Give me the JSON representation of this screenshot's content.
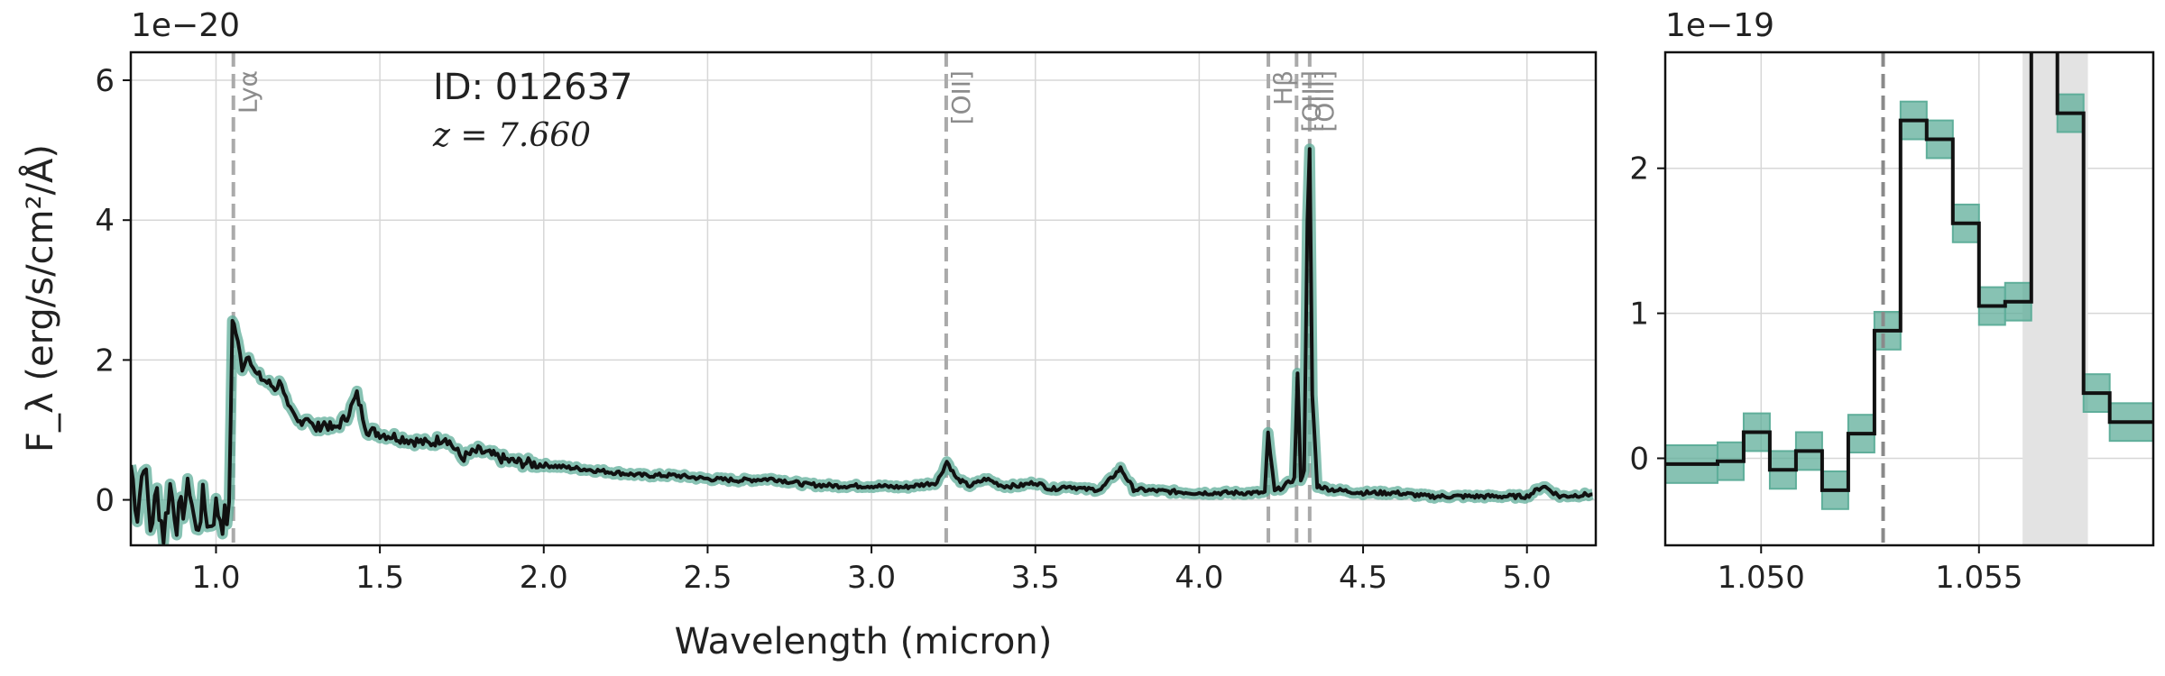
{
  "chart_data": [
    {
      "type": "line",
      "panel": "full-spectrum",
      "xlabel": "Wavelength (micron)",
      "ylabel": "F_λ (erg/s/cm²/Å)",
      "y_multiplier": "1e−20",
      "xlim": [
        0.74,
        5.21
      ],
      "ylim": [
        -0.65,
        6.4
      ],
      "xticks": [
        "1.0",
        "1.5",
        "2.0",
        "2.5",
        "3.0",
        "3.5",
        "4.0",
        "4.5",
        "5.0"
      ],
      "yticks": [
        "0",
        "2",
        "4",
        "6"
      ],
      "grid": true,
      "annotations": {
        "id": "ID: 012637",
        "redshift": "z = 7.660"
      },
      "emission_lines": [
        {
          "label": "Lyα",
          "x": 1.053
        },
        {
          "label": "[OII]",
          "x": 3.228
        },
        {
          "label": "Hβ",
          "x": 4.211
        },
        {
          "label": "[OIII]",
          "x": 4.297
        },
        {
          "label": "[OIII]",
          "x": 4.337
        }
      ],
      "x": [
        0.74,
        0.76,
        0.78,
        0.8,
        0.82,
        0.84,
        0.86,
        0.88,
        0.9,
        0.92,
        0.94,
        0.96,
        0.98,
        1.0,
        1.02,
        1.04,
        1.05,
        1.06,
        1.08,
        1.1,
        1.12,
        1.15,
        1.18,
        1.2,
        1.22,
        1.25,
        1.28,
        1.3,
        1.33,
        1.36,
        1.4,
        1.43,
        1.46,
        1.5,
        1.55,
        1.6,
        1.65,
        1.7,
        1.75,
        1.8,
        1.9,
        2.0,
        2.1,
        2.2,
        2.3,
        2.4,
        2.5,
        2.6,
        2.7,
        2.8,
        2.9,
        3.0,
        3.1,
        3.2,
        3.23,
        3.26,
        3.3,
        3.35,
        3.4,
        3.45,
        3.5,
        3.55,
        3.6,
        3.65,
        3.7,
        3.76,
        3.8,
        3.9,
        4.0,
        4.1,
        4.2,
        4.21,
        4.23,
        4.26,
        4.29,
        4.3,
        4.31,
        4.32,
        4.33,
        4.337,
        4.345,
        4.36,
        4.4,
        4.5,
        4.6,
        4.7,
        4.8,
        4.9,
        5.0,
        5.05,
        5.1,
        5.2
      ],
      "y": [
        0.5,
        -0.2,
        0.6,
        -0.4,
        0.1,
        -0.5,
        0.2,
        -0.3,
        -0.1,
        0.2,
        -0.5,
        0.0,
        -0.4,
        -0.1,
        -0.3,
        -0.2,
        2.6,
        2.4,
        1.9,
        2.1,
        1.8,
        1.7,
        1.6,
        1.7,
        1.3,
        1.1,
        1.2,
        1.0,
        1.1,
        1.0,
        1.2,
        1.5,
        1.0,
        0.95,
        0.9,
        0.85,
        0.8,
        0.9,
        0.6,
        0.7,
        0.55,
        0.5,
        0.45,
        0.4,
        0.35,
        0.35,
        0.3,
        0.28,
        0.3,
        0.22,
        0.2,
        0.2,
        0.18,
        0.25,
        0.55,
        0.3,
        0.2,
        0.3,
        0.2,
        0.2,
        0.25,
        0.15,
        0.2,
        0.15,
        0.15,
        0.45,
        0.15,
        0.12,
        0.1,
        0.1,
        0.1,
        0.95,
        0.12,
        0.2,
        0.3,
        1.8,
        0.3,
        0.4,
        4.0,
        5.0,
        1.5,
        0.2,
        0.15,
        0.1,
        0.1,
        0.05,
        0.05,
        0.05,
        0.05,
        0.2,
        0.05,
        0.08
      ]
    },
    {
      "type": "line",
      "panel": "lya-zoom",
      "y_multiplier": "1e−19",
      "xlim": [
        1.0478,
        1.059
      ],
      "ylim": [
        -0.6,
        2.8
      ],
      "xticks": [
        "1.050",
        "1.055"
      ],
      "yticks": [
        "0",
        "1",
        "2"
      ],
      "grid": true,
      "marker_line_x": 1.0528,
      "shaded_region": [
        1.056,
        1.0575
      ],
      "step_x": [
        1.0478,
        1.049,
        1.0496,
        1.0502,
        1.0508,
        1.0514,
        1.052,
        1.0526,
        1.0532,
        1.0538,
        1.0544,
        1.055,
        1.0556,
        1.0562,
        1.0568,
        1.0574,
        1.058,
        1.059
      ],
      "step_y": [
        -0.04,
        -0.02,
        0.18,
        -0.08,
        0.05,
        -0.22,
        0.17,
        0.88,
        2.33,
        2.2,
        1.62,
        1.05,
        1.08,
        4.5,
        2.38,
        0.45,
        0.25
      ]
    }
  ],
  "style": {
    "line_color": "#111111",
    "error_color": "#5fae9a",
    "vline_color": "#aaaaaa",
    "shade_color": "#e3e3e3",
    "grid_color": "#d7d7d7"
  }
}
